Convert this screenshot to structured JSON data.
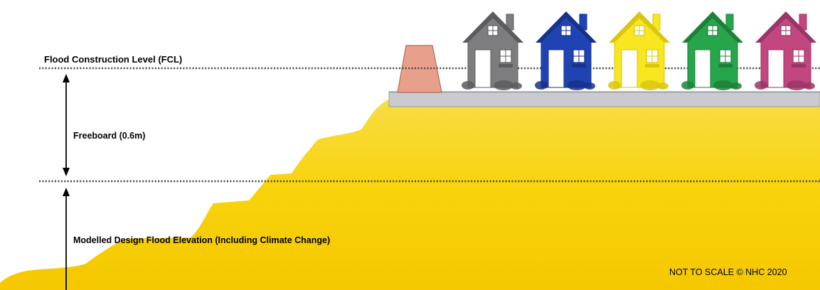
{
  "labels": {
    "fcl": "Flood Construction Level (FCL)",
    "freeboard": "Freeboard (0.6m)",
    "design_flood": "Modelled  Design Flood Elevation (Including Climate Change)",
    "note": "NOT TO SCALE  © NHC 2020"
  },
  "colors": {
    "water_top": "#f7dd4a",
    "water_mid": "#f8d40e",
    "water_bottom": "#f5c800",
    "platform": "#c9cbd0",
    "dike": "#e9a08a",
    "dotted_line": "#444444"
  },
  "houses": [
    {
      "name": "gray-house",
      "color": "#7d7d7f",
      "dark": "#5c5c5e"
    },
    {
      "name": "blue-house",
      "color": "#1f43b3",
      "dark": "#163289"
    },
    {
      "name": "yellow-house",
      "color": "#f7e620",
      "dark": "#d9c70e"
    },
    {
      "name": "green-house",
      "color": "#27a54b",
      "dark": "#1c8137"
    },
    {
      "name": "pink-house",
      "color": "#c2467f",
      "dark": "#9c3566"
    }
  ]
}
